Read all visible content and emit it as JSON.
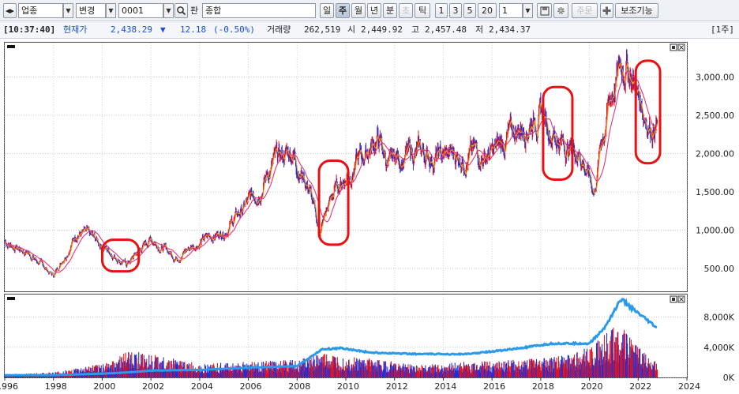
{
  "toolbar": {
    "market_value": "업종",
    "mode_value": "변경",
    "code_value": "0001",
    "pan_label": "판",
    "name_value": "종합",
    "period_buttons": [
      "일",
      "주",
      "월",
      "년",
      "분",
      "초",
      "틱"
    ],
    "selected_period": "주",
    "count_buttons": [
      "1",
      "3",
      "5",
      "20"
    ],
    "interval_value": "1",
    "order_label": "주문",
    "aux_label": "보조기능"
  },
  "infobar": {
    "time": "[10:37:40]",
    "price_label": "현재가",
    "price": "2,438.29",
    "direction": "▼",
    "change": "12.18",
    "change_pct": "(-0.50%)",
    "volume_label": "거래량",
    "volume": "262,519",
    "open_label": "시",
    "open": "2,449.92",
    "high_label": "고",
    "high": "2,457.48",
    "low_label": "저",
    "low": "2,434.37",
    "unit": "[1주]"
  },
  "colors": {
    "up": "#e0141e",
    "down": "#1f2fd8",
    "ma_short": "#f2a020",
    "ma_long": "#e6337a",
    "volume_ma": "#2b9ae8",
    "highlight": "#e81010"
  },
  "chart_data": [
    {
      "type": "line",
      "title": "",
      "x": [
        1996,
        1997,
        1998,
        1999,
        2000,
        2001,
        2002,
        2003,
        2004,
        2005,
        2006,
        2007,
        2007.8,
        2008.5,
        2008.9,
        2009.5,
        2010,
        2011.3,
        2011.8,
        2012,
        2013,
        2014,
        2015,
        2016,
        2017,
        2017.9,
        2018.5,
        2019,
        2019.6,
        2020.2,
        2020.5,
        2021,
        2021.5,
        2022,
        2022.5,
        2022.8
      ],
      "series": [
        {
          "values": [
            850,
            700,
            400,
            1000,
            800,
            550,
            900,
            650,
            850,
            1000,
            1350,
            1850,
            2050,
            1550,
            950,
            1500,
            1700,
            2200,
            1800,
            1950,
            2000,
            1950,
            2000,
            1980,
            2300,
            2550,
            2300,
            2100,
            2050,
            1500,
            2200,
            2900,
            3250,
            2750,
            2400,
            2440
          ]
        }
      ],
      "xlim": [
        1996,
        2024
      ],
      "ylim": [
        200,
        3450
      ],
      "y_ticks": [
        "500.00",
        "1,000.00",
        "1,500.00",
        "2,000.00",
        "2,500.00",
        "3,000.00"
      ],
      "x_ticks": [
        "1996",
        "1998",
        "2000",
        "2002",
        "2004",
        "2006",
        "2008",
        "2010",
        "2012",
        "2014",
        "2016",
        "2018",
        "2020",
        "2022",
        "2024"
      ],
      "grid": true,
      "highlight_periods": [
        {
          "from": 2000,
          "to": 2001.5
        },
        {
          "from": 2008.9,
          "to": 2010.1
        },
        {
          "from": 2018.1,
          "to": 2019.3
        },
        {
          "from": 2021.9,
          "to": 2022.9
        }
      ]
    },
    {
      "type": "bar",
      "title": "",
      "x": [
        1996,
        1998,
        2000,
        2001.2,
        2002,
        2004,
        2006,
        2008,
        2009,
        2009.8,
        2011,
        2013,
        2015,
        2017,
        2018.5,
        2020,
        2020.6,
        2021.3,
        2021.8,
        2022.8
      ],
      "series": [
        {
          "values": [
            300,
            500,
            1300,
            2600,
            2200,
            1300,
            1500,
            1700,
            2300,
            2000,
            1800,
            1200,
            1500,
            1700,
            1900,
            2900,
            4000,
            5500,
            3300,
            1500
          ]
        },
        {
          "values": [
            300,
            300,
            500,
            700,
            900,
            1000,
            1300,
            1500,
            3700,
            3900,
            3300,
            3100,
            3100,
            3800,
            4500,
            4500,
            6500,
            10400,
            9000,
            6500
          ]
        }
      ],
      "xlim": [
        1996,
        2024
      ],
      "ylim": [
        0,
        11000
      ],
      "y_ticks": [
        "0K",
        "4,000K",
        "8,000K"
      ],
      "grid": true
    }
  ]
}
